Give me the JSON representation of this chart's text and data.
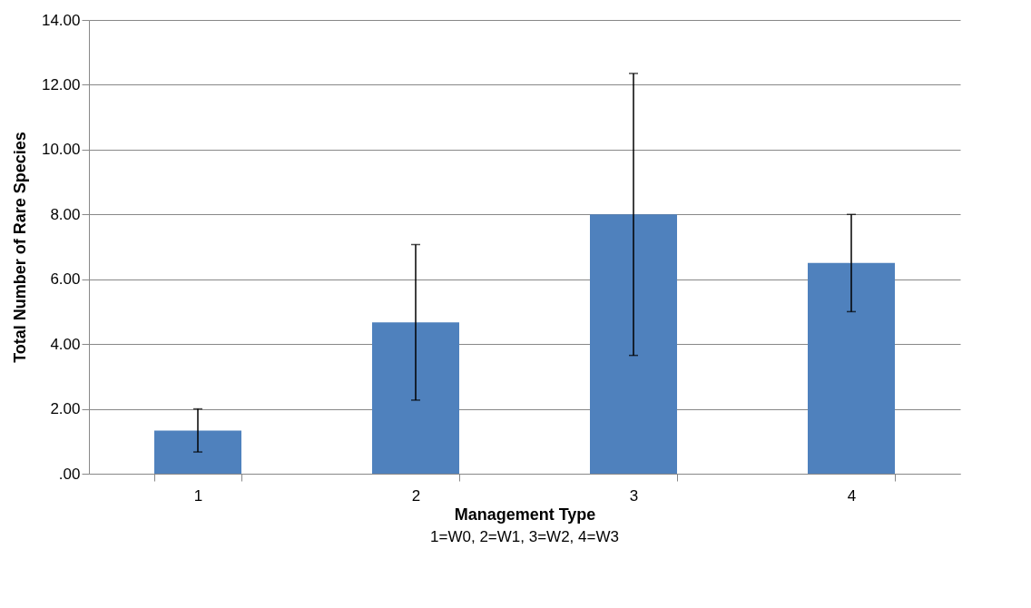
{
  "chart_data": {
    "type": "bar",
    "categories": [
      "1",
      "2",
      "3",
      "4"
    ],
    "values": [
      1.33,
      4.67,
      8.0,
      6.5
    ],
    "color": "#4f81bd",
    "errors": [
      [
        0.67,
        2.0
      ],
      [
        2.27,
        7.07
      ],
      [
        3.65,
        12.35
      ],
      [
        5.0,
        8.0
      ]
    ],
    "xlabel": "Management Type",
    "ylabel": "Total Number of Rare Species",
    "ylim": [
      0,
      14
    ],
    "yticks": [
      {
        "value": 0,
        "label": ".00"
      },
      {
        "value": 2,
        "label": "2.00"
      },
      {
        "value": 4,
        "label": "4.00"
      },
      {
        "value": 6,
        "label": "6.00"
      },
      {
        "value": 8,
        "label": "8.00"
      },
      {
        "value": 10,
        "label": "10.00"
      },
      {
        "value": 12,
        "label": "12.00"
      },
      {
        "value": 14,
        "label": "14.00"
      }
    ],
    "grid": "y",
    "annotations": [
      "1=W0, 2=W1, 3=W2, 4=W3"
    ]
  }
}
